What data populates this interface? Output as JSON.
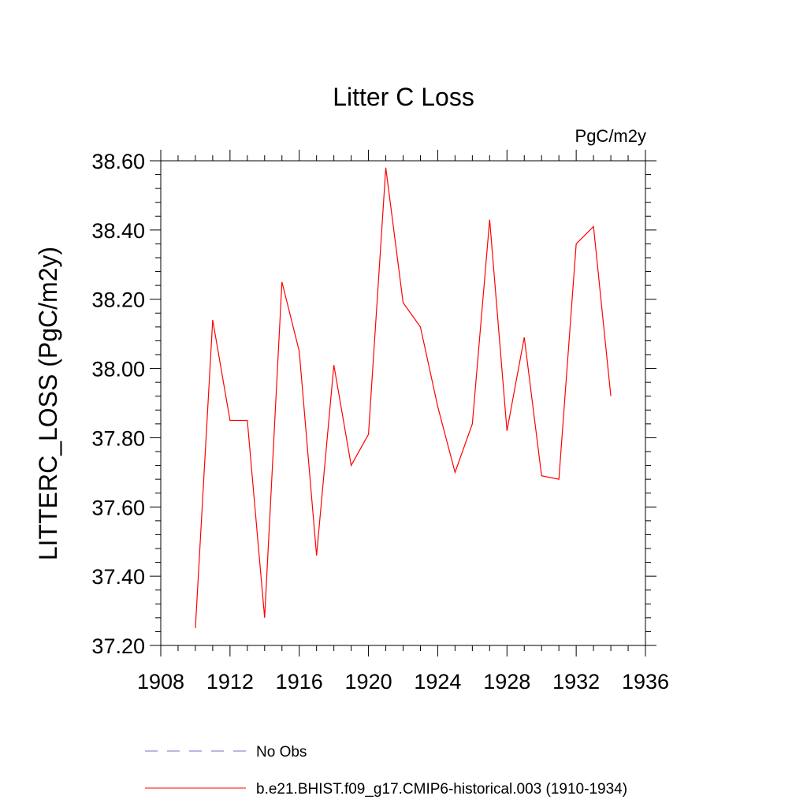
{
  "chart_data": {
    "type": "line",
    "title": "Litter C Loss",
    "units": "PgC/m2y",
    "ylabel": "LITTERC_LOSS  (PgC/m2y)",
    "xlabel": "",
    "xlim": [
      1908,
      1936
    ],
    "ylim": [
      37.2,
      38.6
    ],
    "x_ticks": [
      1908,
      1912,
      1916,
      1920,
      1924,
      1928,
      1932,
      1936
    ],
    "x_tick_labels": [
      "1908",
      "1912",
      "1916",
      "1920",
      "1924",
      "1928",
      "1932",
      "1936"
    ],
    "y_ticks": [
      37.2,
      37.4,
      37.6,
      37.8,
      38.0,
      38.2,
      38.4,
      38.6
    ],
    "y_tick_labels": [
      "37.20",
      "37.40",
      "37.60",
      "37.80",
      "38.00",
      "38.20",
      "38.40",
      "38.60"
    ],
    "x_minor_step": 1,
    "y_minor_step": 0.04,
    "grid": false,
    "legend_placement": "bottom",
    "series": [
      {
        "name": "b.e21.BHIST.f09_g17.CMIP6-historical.003 (1910-1934)",
        "color": "#ff0000",
        "style": "solid",
        "x": [
          1910,
          1911,
          1912,
          1913,
          1914,
          1915,
          1916,
          1917,
          1918,
          1919,
          1920,
          1921,
          1922,
          1923,
          1924,
          1925,
          1926,
          1927,
          1928,
          1929,
          1930,
          1931,
          1932,
          1933,
          1934
        ],
        "values": [
          37.25,
          38.14,
          37.85,
          37.85,
          37.28,
          38.25,
          38.05,
          37.46,
          38.01,
          37.72,
          37.81,
          38.58,
          38.19,
          38.12,
          37.89,
          37.7,
          37.84,
          38.43,
          37.82,
          38.09,
          37.69,
          37.68,
          38.36,
          38.41,
          37.92
        ]
      }
    ],
    "legend": [
      {
        "label": "No Obs",
        "color": "#7a6fc0",
        "style": "dashed"
      },
      {
        "label": "b.e21.BHIST.f09_g17.CMIP6-historical.003 (1910-1934)",
        "color": "#ff0000",
        "style": "solid"
      }
    ]
  }
}
